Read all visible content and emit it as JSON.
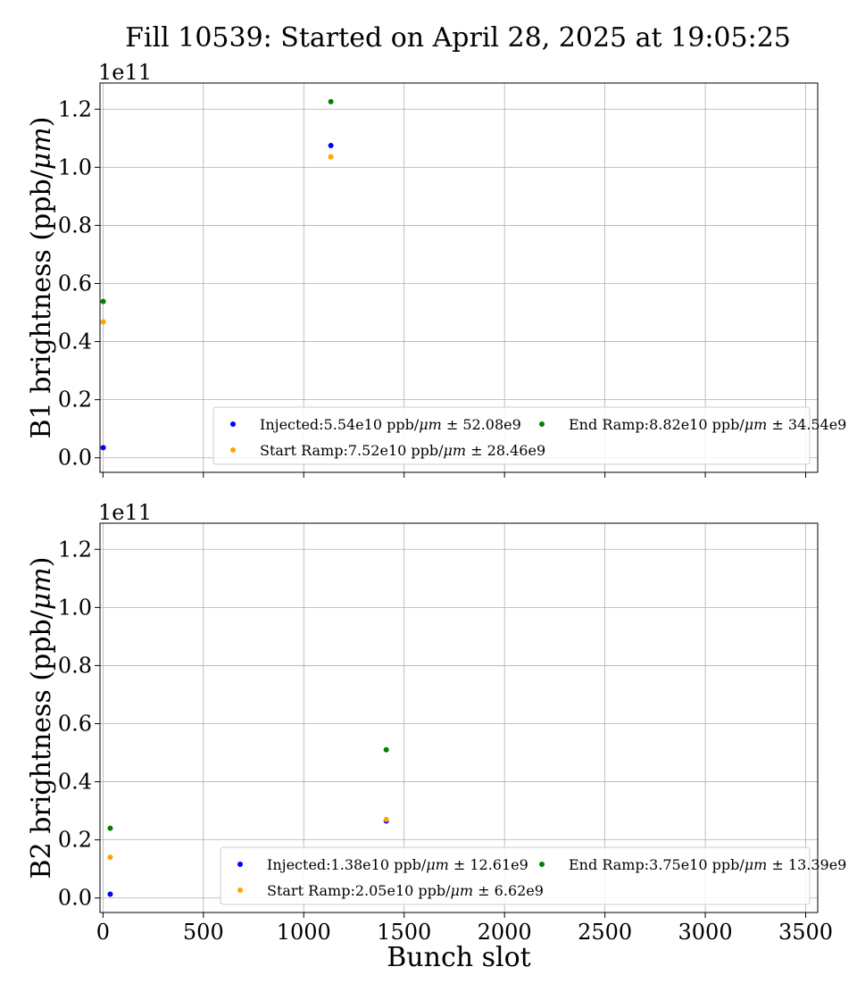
{
  "figure_title": "Fill 10539: Started on April 28, 2025 at 19:05:25",
  "chart_data": [
    {
      "type": "scatter",
      "ylabel": "B1 brightness (ppb/μm)",
      "xlabel": "",
      "offset_text": "1e11",
      "xlim": [
        -15,
        3560
      ],
      "ylim": [
        -5000000000.0,
        129000000000.0
      ],
      "x_ticks": [
        0,
        500,
        1000,
        1500,
        2000,
        2500,
        3000,
        3500
      ],
      "x_tick_labels_visible": false,
      "y_ticks": [
        0.0,
        0.2,
        0.4,
        0.6,
        0.8,
        1.0,
        1.2
      ],
      "y_tick_labels": [
        "0.0",
        "0.2",
        "0.4",
        "0.6",
        "0.8",
        "1.0",
        "1.2"
      ],
      "grid": true,
      "legend_position": "lower-right",
      "series": [
        {
          "name": "Injected",
          "legend": "Injected:5.54e10 ppb/μm ± 52.08e9",
          "color": "#0000ff",
          "x": [
            1,
            1135
          ],
          "y": [
            3500000000.0,
            107500000000.0
          ]
        },
        {
          "name": "Start Ramp",
          "legend": "Start Ramp:7.52e10 ppb/μm ± 28.46e9",
          "color": "#ffa500",
          "x": [
            1,
            1135
          ],
          "y": [
            46800000000.0,
            103600000000.0
          ]
        },
        {
          "name": "End Ramp",
          "legend": "End Ramp:8.82e10 ppb/μm ± 34.54e9",
          "color": "#008000",
          "x": [
            1,
            1135
          ],
          "y": [
            53800000000.0,
            122600000000.0
          ]
        }
      ]
    },
    {
      "type": "scatter",
      "ylabel": "B2 brightness (ppb/μm)",
      "xlabel": "Bunch slot",
      "offset_text": "1e11",
      "xlim": [
        -15,
        3560
      ],
      "ylim": [
        -5000000000.0,
        129000000000.0
      ],
      "x_ticks": [
        0,
        500,
        1000,
        1500,
        2000,
        2500,
        3000,
        3500
      ],
      "x_tick_labels": [
        "0",
        "500",
        "1000",
        "1500",
        "2000",
        "2500",
        "3000",
        "3500"
      ],
      "x_tick_labels_visible": true,
      "y_ticks": [
        0.0,
        0.2,
        0.4,
        0.6,
        0.8,
        1.0,
        1.2
      ],
      "y_tick_labels": [
        "0.0",
        "0.2",
        "0.4",
        "0.6",
        "0.8",
        "1.0",
        "1.2"
      ],
      "grid": true,
      "legend_position": "lower-right",
      "series": [
        {
          "name": "Injected",
          "legend": "Injected:1.38e10 ppb/μm ± 12.61e9",
          "color": "#0000ff",
          "x": [
            36,
            1411
          ],
          "y": [
            1300000000.0,
            26500000000.0
          ]
        },
        {
          "name": "Start Ramp",
          "legend": "Start Ramp:2.05e10 ppb/μm ± 6.62e9",
          "color": "#ffa500",
          "x": [
            36,
            1411
          ],
          "y": [
            14000000000.0,
            27000000000.0
          ]
        },
        {
          "name": "End Ramp",
          "legend": "End Ramp:3.75e10 ppb/μm ± 13.39e9",
          "color": "#008000",
          "x": [
            36,
            1411
          ],
          "y": [
            24000000000.0,
            51000000000.0
          ]
        }
      ]
    }
  ]
}
